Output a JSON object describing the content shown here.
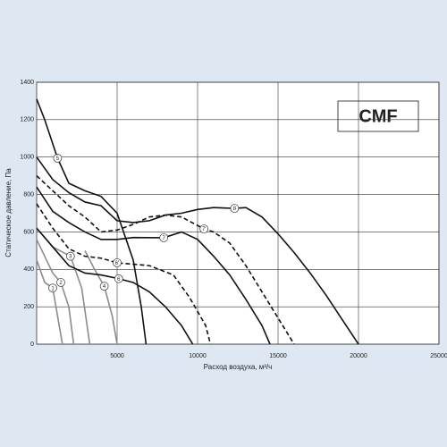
{
  "chart_data": {
    "type": "line",
    "badge": "CMF",
    "x_label": "Расход воздуха, м³/ч",
    "y_label": "Статическое давление, Па",
    "xlim": [
      0,
      25000
    ],
    "ylim": [
      0,
      1400
    ],
    "xticks": [
      5000,
      10000,
      15000,
      20000,
      25000
    ],
    "yticks": [
      0,
      200,
      400,
      600,
      800,
      1000,
      1200,
      1400
    ],
    "grid": true,
    "series": [
      {
        "name": "1",
        "color": "#8c8c8c",
        "style": "solid",
        "x": [
          0,
          500,
          1000,
          1300,
          1600
        ],
        "values": [
          450,
          330,
          300,
          150,
          0
        ]
      },
      {
        "name": "2",
        "color": "#8c8c8c",
        "style": "solid",
        "x": [
          0,
          1000,
          1500,
          2000,
          2300
        ],
        "values": [
          560,
          380,
          330,
          200,
          0
        ]
      },
      {
        "name": "3",
        "color": "#8c8c8c",
        "style": "solid",
        "x": [
          0,
          1000,
          2100,
          2800,
          3300
        ],
        "values": [
          620,
          520,
          470,
          300,
          0
        ]
      },
      {
        "name": "4",
        "color": "#8c8c8c",
        "style": "solid",
        "x": [
          3000,
          3600,
          4200,
          4700,
          5000
        ],
        "values": [
          500,
          400,
          310,
          150,
          0
        ]
      },
      {
        "name": "5",
        "color": "#111111",
        "style": "solid",
        "x": [
          0,
          500,
          1300,
          2000,
          3000,
          4000,
          5000,
          6000,
          6500,
          6800
        ],
        "values": [
          1310,
          1200,
          994,
          860,
          820,
          790,
          700,
          450,
          200,
          0
        ]
      },
      {
        "name": "6",
        "color": "#111111",
        "style": "solid",
        "x": [
          0,
          1000,
          2000,
          3000,
          4000,
          5100,
          6000,
          7000,
          8000,
          9000,
          9700
        ],
        "values": [
          620,
          520,
          420,
          380,
          370,
          350,
          330,
          280,
          200,
          100,
          0
        ]
      },
      {
        "name": "6'",
        "color": "#111111",
        "style": "dashed",
        "x": [
          0,
          1000,
          2000,
          3000,
          4000,
          5000,
          7000,
          8500,
          9500,
          10500,
          10800
        ],
        "values": [
          750,
          620,
          510,
          470,
          460,
          435,
          420,
          370,
          250,
          100,
          0
        ]
      },
      {
        "name": "7",
        "color": "#111111",
        "style": "solid",
        "x": [
          0,
          1000,
          2000,
          3000,
          4000,
          5000,
          6000,
          7900,
          9000,
          10000,
          11000,
          12000,
          13000,
          14000,
          14500
        ],
        "values": [
          840,
          710,
          650,
          600,
          560,
          560,
          570,
          569,
          600,
          560,
          470,
          370,
          240,
          100,
          0
        ]
      },
      {
        "name": "7'",
        "color": "#111111",
        "style": "dashed",
        "x": [
          0,
          1000,
          2000,
          3000,
          4000,
          5000,
          6000,
          7000,
          8000,
          9000,
          10400,
          11000,
          12000,
          13000,
          14000,
          15000,
          16000
        ],
        "values": [
          900,
          820,
          740,
          680,
          600,
          610,
          640,
          680,
          690,
          680,
          616,
          600,
          540,
          420,
          280,
          140,
          0
        ]
      },
      {
        "name": "8",
        "color": "#111111",
        "style": "solid",
        "x": [
          0,
          1000,
          2000,
          3000,
          4000,
          5000,
          6000,
          7000,
          8000,
          9000,
          10000,
          11000,
          12300,
          13000,
          14000,
          15000,
          16000,
          17000,
          18000,
          19000,
          20000
        ],
        "values": [
          1000,
          880,
          810,
          760,
          740,
          660,
          650,
          660,
          690,
          700,
          720,
          730,
          726,
          730,
          680,
          590,
          490,
          380,
          260,
          130,
          0
        ]
      }
    ]
  }
}
